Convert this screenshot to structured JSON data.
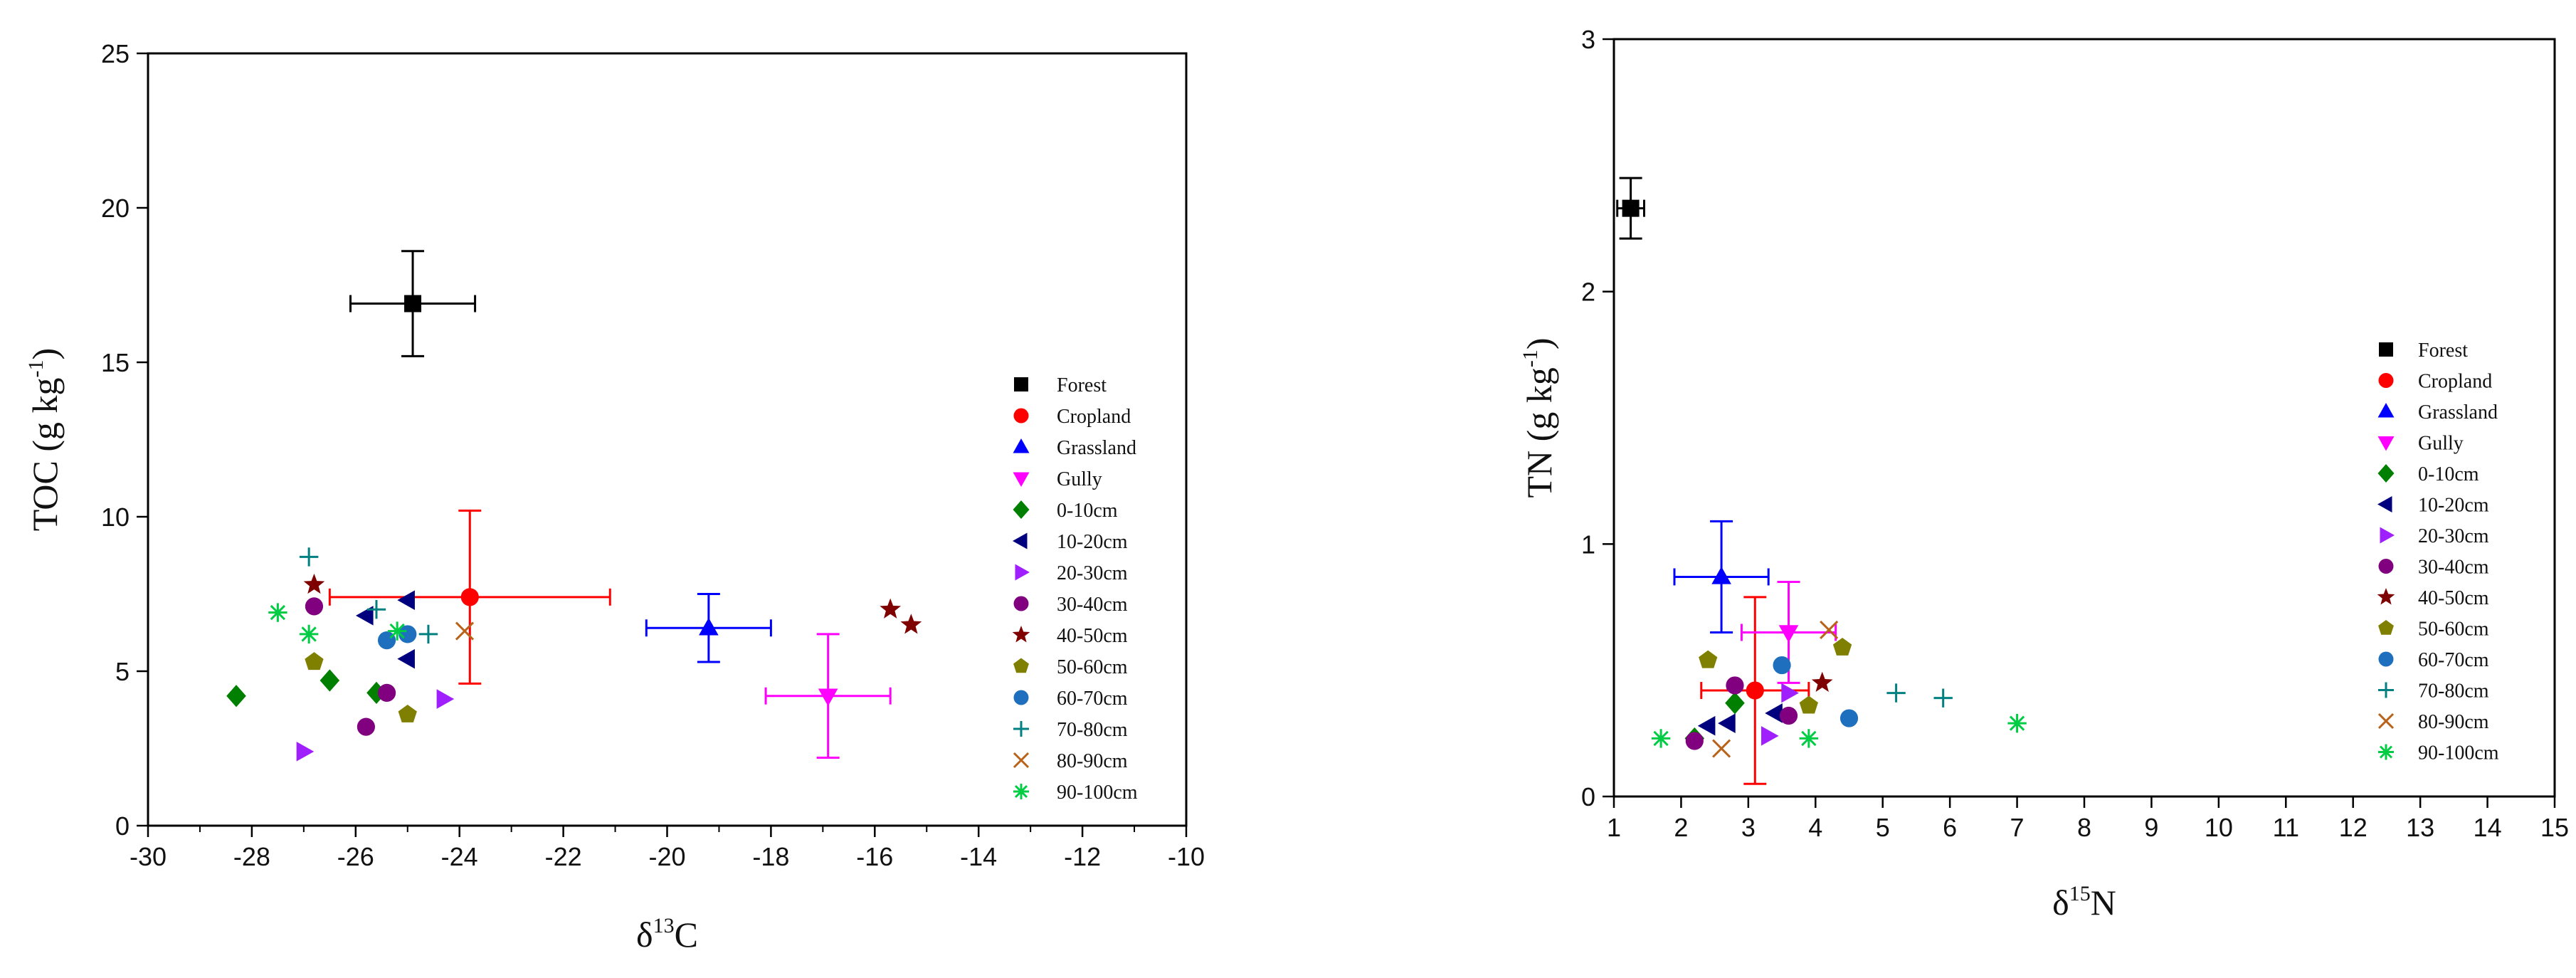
{
  "chart_data": [
    {
      "type": "scatter",
      "title": "",
      "xlabel": {
        "main": "δ",
        "sup": "13",
        "rest": "C"
      },
      "ylabel": {
        "pre": "TOC (g kg",
        "sup": "-1",
        "post": ")"
      },
      "xlim": [
        -30,
        -10
      ],
      "ylim": [
        0,
        25
      ],
      "xticks": [
        -30,
        -28,
        -26,
        -24,
        -22,
        -20,
        -18,
        -16,
        -14,
        -12,
        -10
      ],
      "yticks": [
        0,
        5,
        10,
        15,
        20,
        25
      ],
      "grid": false,
      "legend_position": "right-center",
      "series": [
        {
          "name": "Forest",
          "marker": "square",
          "color": "#000000",
          "points": [
            {
              "x": -24.9,
              "y": 16.9,
              "xerr": 1.2,
              "yerr": 1.7
            }
          ]
        },
        {
          "name": "Cropland",
          "marker": "circle",
          "color": "#ff0000",
          "points": [
            {
              "x": -23.8,
              "y": 7.4,
              "xerr": 2.7,
              "yerr": 2.8
            }
          ]
        },
        {
          "name": "Grassland",
          "marker": "triangle-up",
          "color": "#0000ff",
          "points": [
            {
              "x": -19.2,
              "y": 6.4,
              "xerr": 1.2,
              "yerr": 1.1
            }
          ]
        },
        {
          "name": "Gully",
          "marker": "triangle-down",
          "color": "#ff00ff",
          "points": [
            {
              "x": -16.9,
              "y": 4.2,
              "xerr": 1.2,
              "yerr": 2.0
            }
          ]
        },
        {
          "name": "0-10cm",
          "marker": "diamond",
          "color": "#007f00",
          "points": [
            {
              "x": -28.3,
              "y": 4.2
            },
            {
              "x": -26.5,
              "y": 4.7
            },
            {
              "x": -25.6,
              "y": 4.3
            }
          ]
        },
        {
          "name": "10-20cm",
          "marker": "triangle-left",
          "color": "#00007f",
          "points": [
            {
              "x": -25.8,
              "y": 6.8
            },
            {
              "x": -25.0,
              "y": 7.3
            },
            {
              "x": -25.0,
              "y": 5.4
            }
          ]
        },
        {
          "name": "20-30cm",
          "marker": "triangle-right",
          "color": "#9f1fff",
          "points": [
            {
              "x": -27.0,
              "y": 2.4
            },
            {
              "x": -24.3,
              "y": 4.1
            }
          ]
        },
        {
          "name": "30-40cm",
          "marker": "circle",
          "color": "#800080",
          "points": [
            {
              "x": -26.8,
              "y": 7.1
            },
            {
              "x": -25.8,
              "y": 3.2
            },
            {
              "x": -25.4,
              "y": 4.3
            }
          ]
        },
        {
          "name": "40-50cm",
          "marker": "star",
          "color": "#7f0000",
          "points": [
            {
              "x": -26.8,
              "y": 7.8
            },
            {
              "x": -15.7,
              "y": 7.0
            },
            {
              "x": -15.3,
              "y": 6.5
            }
          ]
        },
        {
          "name": "50-60cm",
          "marker": "pentagon",
          "color": "#808000",
          "points": [
            {
              "x": -26.8,
              "y": 5.3
            },
            {
              "x": -25.0,
              "y": 3.6
            }
          ]
        },
        {
          "name": "60-70cm",
          "marker": "circle",
          "color": "#1f6fbf",
          "points": [
            {
              "x": -25.4,
              "y": 6.0
            },
            {
              "x": -25.0,
              "y": 6.2
            }
          ]
        },
        {
          "name": "70-80cm",
          "marker": "plus",
          "color": "#008080",
          "points": [
            {
              "x": -26.9,
              "y": 8.7
            },
            {
              "x": -25.6,
              "y": 7.0
            },
            {
              "x": -24.6,
              "y": 6.2
            }
          ]
        },
        {
          "name": "80-90cm",
          "marker": "cross",
          "color": "#b8621a",
          "points": [
            {
              "x": -23.9,
              "y": 6.3
            }
          ]
        },
        {
          "name": "90-100cm",
          "marker": "asterisk",
          "color": "#00cc44",
          "points": [
            {
              "x": -27.5,
              "y": 6.9
            },
            {
              "x": -26.9,
              "y": 6.2
            },
            {
              "x": -25.2,
              "y": 6.3
            }
          ]
        }
      ]
    },
    {
      "type": "scatter",
      "title": "",
      "xlabel": {
        "main": "δ",
        "sup": "15",
        "rest": "N"
      },
      "ylabel": {
        "pre": "TN (g kg",
        "sup": "-1",
        "post": ")"
      },
      "xlim": [
        1,
        15
      ],
      "ylim": [
        0,
        3
      ],
      "xticks": [
        1,
        2,
        3,
        4,
        5,
        6,
        7,
        8,
        9,
        10,
        11,
        12,
        13,
        14,
        15
      ],
      "yticks": [
        0,
        1,
        2,
        3
      ],
      "grid": false,
      "legend_position": "right-center",
      "series": [
        {
          "name": "Forest",
          "marker": "square",
          "color": "#000000",
          "points": [
            {
              "x": 1.25,
              "y": 2.33,
              "xerr": 0.2,
              "yerr": 0.12
            }
          ]
        },
        {
          "name": "Cropland",
          "marker": "circle",
          "color": "#ff0000",
          "points": [
            {
              "x": 3.1,
              "y": 0.42,
              "xerr": 0.8,
              "yerr": 0.37
            }
          ]
        },
        {
          "name": "Grassland",
          "marker": "triangle-up",
          "color": "#0000ff",
          "points": [
            {
              "x": 2.6,
              "y": 0.87,
              "xerr": 0.7,
              "yerr": 0.22
            }
          ]
        },
        {
          "name": "Gully",
          "marker": "triangle-down",
          "color": "#ff00ff",
          "points": [
            {
              "x": 3.6,
              "y": 0.65,
              "xerr": 0.7,
              "yerr": 0.2
            }
          ]
        },
        {
          "name": "0-10cm",
          "marker": "diamond",
          "color": "#007f00",
          "points": [
            {
              "x": 2.2,
              "y": 0.23
            },
            {
              "x": 2.8,
              "y": 0.37
            }
          ]
        },
        {
          "name": "10-20cm",
          "marker": "triangle-left",
          "color": "#00007f",
          "points": [
            {
              "x": 2.4,
              "y": 0.28
            },
            {
              "x": 2.7,
              "y": 0.29
            },
            {
              "x": 3.4,
              "y": 0.33
            }
          ]
        },
        {
          "name": "20-30cm",
          "marker": "triangle-right",
          "color": "#9f1fff",
          "points": [
            {
              "x": 3.3,
              "y": 0.24
            },
            {
              "x": 3.6,
              "y": 0.41
            }
          ]
        },
        {
          "name": "30-40cm",
          "marker": "circle",
          "color": "#800080",
          "points": [
            {
              "x": 2.2,
              "y": 0.22
            },
            {
              "x": 2.8,
              "y": 0.44
            },
            {
              "x": 3.6,
              "y": 0.32
            }
          ]
        },
        {
          "name": "40-50cm",
          "marker": "star",
          "color": "#7f0000",
          "points": [
            {
              "x": 4.1,
              "y": 0.45
            }
          ]
        },
        {
          "name": "50-60cm",
          "marker": "pentagon",
          "color": "#808000",
          "points": [
            {
              "x": 2.4,
              "y": 0.54
            },
            {
              "x": 3.9,
              "y": 0.36
            },
            {
              "x": 4.4,
              "y": 0.59
            }
          ]
        },
        {
          "name": "60-70cm",
          "marker": "circle",
          "color": "#1f6fbf",
          "points": [
            {
              "x": 3.5,
              "y": 0.52
            },
            {
              "x": 4.5,
              "y": 0.31
            }
          ]
        },
        {
          "name": "70-80cm",
          "marker": "plus",
          "color": "#008080",
          "points": [
            {
              "x": 5.2,
              "y": 0.41
            },
            {
              "x": 5.9,
              "y": 0.39
            }
          ]
        },
        {
          "name": "80-90cm",
          "marker": "cross",
          "color": "#b8621a",
          "points": [
            {
              "x": 2.6,
              "y": 0.19
            },
            {
              "x": 4.2,
              "y": 0.66
            }
          ]
        },
        {
          "name": "90-100cm",
          "marker": "asterisk",
          "color": "#00cc44",
          "points": [
            {
              "x": 1.7,
              "y": 0.23
            },
            {
              "x": 3.9,
              "y": 0.23
            },
            {
              "x": 7.0,
              "y": 0.29
            }
          ]
        }
      ]
    }
  ]
}
